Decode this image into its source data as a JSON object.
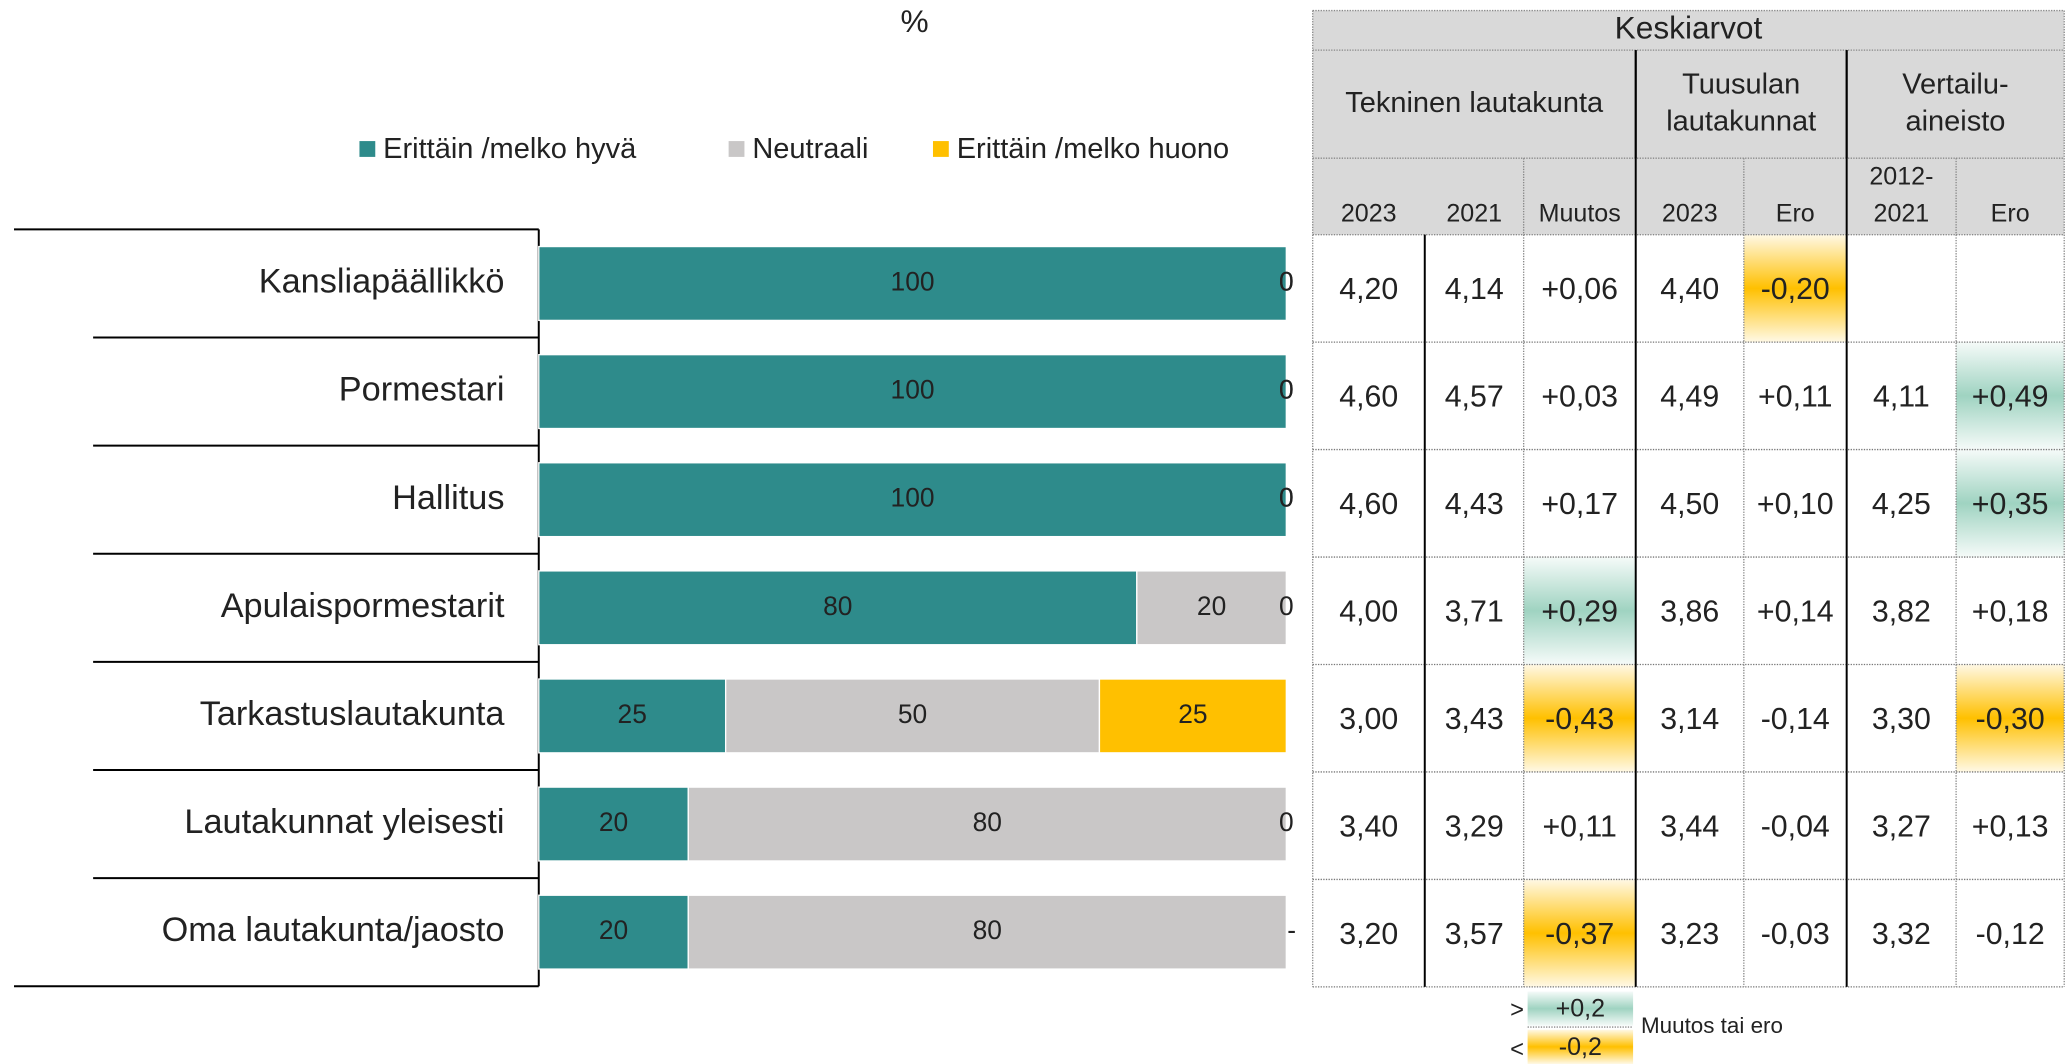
{
  "chart_data": {
    "type": "stacked-bar-horizontal",
    "title": "%",
    "categories": [
      "Kansliapäällikkö",
      "Pormestari",
      "Hallitus",
      "Apulaispormestarit",
      "Tarkastuslautakunta",
      "Lautakunnat yleisesti",
      "Oma lautakunta/jaosto"
    ],
    "xlim": [
      0,
      100
    ],
    "series": [
      {
        "name": "Erittäin /melko hyvä",
        "color": "#2e8b8b",
        "text_color": "#ffffff",
        "values": [
          100,
          100,
          100,
          80,
          25,
          20,
          20
        ]
      },
      {
        "name": "Neutraali",
        "color": "#c9c7c7",
        "text_color": "#333333",
        "values": [
          0,
          0,
          0,
          20,
          50,
          80,
          80
        ]
      },
      {
        "name": "Erittäin /melko huono",
        "color": "#ffc000",
        "text_color": "#333333",
        "values": [
          0,
          0,
          0,
          0,
          25,
          0,
          null
        ],
        "value_labels": [
          "0",
          "0",
          "0",
          "0",
          "25",
          "0",
          "-"
        ]
      }
    ],
    "legend": "top"
  },
  "table": {
    "title": "Keskiarvot",
    "groups": [
      [
        "Tekninen lautakunta"
      ],
      [
        "Tuusulan",
        "lautakunnat"
      ],
      [
        "Vertailu-",
        "aineisto"
      ]
    ],
    "columns": [
      [
        "2023"
      ],
      [
        "2021"
      ],
      [
        "Muutos"
      ],
      [
        "2023"
      ],
      [
        "Ero"
      ],
      [
        "2012-",
        "2021"
      ],
      [
        "Ero"
      ]
    ],
    "rows": [
      [
        "4,20",
        "4,14",
        "+0,06",
        "4,40",
        "-0,20",
        null,
        null
      ],
      [
        "4,60",
        "4,57",
        "+0,03",
        "4,49",
        "+0,11",
        "4,11",
        "+0,49"
      ],
      [
        "4,60",
        "4,43",
        "+0,17",
        "4,50",
        "+0,10",
        "4,25",
        "+0,35"
      ],
      [
        "4,00",
        "3,71",
        "+0,29",
        "3,86",
        "+0,14",
        "3,82",
        "+0,18"
      ],
      [
        "3,00",
        "3,43",
        "-0,43",
        "3,14",
        "-0,14",
        "3,30",
        "-0,30"
      ],
      [
        "3,40",
        "3,29",
        "+0,11",
        "3,44",
        "-0,04",
        "3,27",
        "+0,13"
      ],
      [
        "3,20",
        "3,57",
        "-0,37",
        "3,23",
        "-0,03",
        "3,32",
        "-0,12"
      ]
    ],
    "highlight": [
      [
        null,
        null,
        null,
        null,
        "down",
        null,
        null
      ],
      [
        null,
        null,
        null,
        null,
        null,
        null,
        "up"
      ],
      [
        null,
        null,
        null,
        null,
        null,
        null,
        "up"
      ],
      [
        null,
        null,
        "up",
        null,
        null,
        null,
        null
      ],
      [
        null,
        null,
        "down",
        null,
        null,
        null,
        "down"
      ],
      [
        null,
        null,
        null,
        null,
        null,
        null,
        null
      ],
      [
        null,
        null,
        "down",
        null,
        null,
        null,
        null
      ]
    ],
    "highlight_colors": {
      "up": "#9fd3c1",
      "down": "#ffc000"
    },
    "legend": {
      "up_sign": ">",
      "up_label": "+0,2",
      "down_sign": "<",
      "down_label": "-0,2",
      "caption": "Muutos tai ero"
    }
  }
}
